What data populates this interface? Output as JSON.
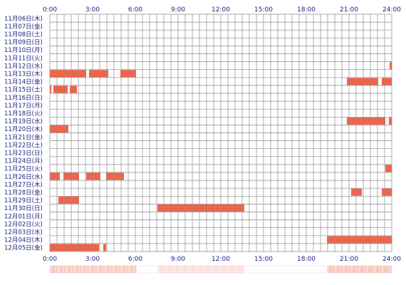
{
  "chart_data": {
    "type": "heatmap",
    "colors": {
      "background": "#ffffff",
      "grid": "#8c8c8c",
      "activity": "#f0644a",
      "label": "#1a237e"
    },
    "hour_ticks": [
      {
        "hour": 0,
        "label": "0:00"
      },
      {
        "hour": 3,
        "label": "3:00"
      },
      {
        "hour": 6,
        "label": "6:00"
      },
      {
        "hour": 9,
        "label": "9:00"
      },
      {
        "hour": 12,
        "label": "12:00"
      },
      {
        "hour": 15,
        "label": "15:00"
      },
      {
        "hour": 18,
        "label": "18:00"
      },
      {
        "hour": 21,
        "label": "21:00"
      },
      {
        "hour": 24,
        "label": "24:00"
      }
    ],
    "rows": [
      {
        "date": "11月06日(木)",
        "segments": []
      },
      {
        "date": "11月07日(金)",
        "segments": []
      },
      {
        "date": "11月08日(土)",
        "segments": []
      },
      {
        "date": "11月09日(日)",
        "segments": []
      },
      {
        "date": "11月10日(月)",
        "segments": []
      },
      {
        "date": "11月11日(火)",
        "segments": []
      },
      {
        "date": "11月12日(水)",
        "segments": [
          [
            23.85,
            24.0
          ]
        ]
      },
      {
        "date": "11月13日(木)",
        "segments": [
          [
            0.0,
            2.55
          ],
          [
            2.75,
            3.05
          ],
          [
            3.05,
            4.1
          ],
          [
            4.95,
            6.05
          ]
        ]
      },
      {
        "date": "11月14日(金)",
        "segments": [
          [
            20.85,
            23.05
          ],
          [
            23.3,
            24.0
          ]
        ]
      },
      {
        "date": "11月15日(土)",
        "segments": [
          [
            0.0,
            0.1
          ],
          [
            0.25,
            1.25
          ],
          [
            1.4,
            1.9
          ]
        ]
      },
      {
        "date": "11月16日(日)",
        "segments": []
      },
      {
        "date": "11月17日(月)",
        "segments": []
      },
      {
        "date": "11月18日(火)",
        "segments": []
      },
      {
        "date": "11月19日(水)",
        "segments": [
          [
            20.85,
            23.55
          ],
          [
            23.8,
            24.0
          ]
        ]
      },
      {
        "date": "11月20日(木)",
        "segments": [
          [
            0.0,
            1.3
          ]
        ]
      },
      {
        "date": "11月21日(金)",
        "segments": []
      },
      {
        "date": "11月22日(土)",
        "segments": []
      },
      {
        "date": "11月23日(日)",
        "segments": []
      },
      {
        "date": "11月24日(月)",
        "segments": []
      },
      {
        "date": "11月25日(火)",
        "segments": [
          [
            23.55,
            24.0
          ]
        ]
      },
      {
        "date": "11月26日(水)",
        "segments": [
          [
            0.0,
            0.7
          ],
          [
            0.95,
            2.05
          ],
          [
            2.55,
            3.55
          ],
          [
            3.95,
            5.2
          ]
        ]
      },
      {
        "date": "11月27日(木)",
        "segments": []
      },
      {
        "date": "11月28日(金)",
        "segments": [
          [
            21.15,
            21.9
          ],
          [
            23.3,
            24.0
          ]
        ]
      },
      {
        "date": "11月29日(土)",
        "segments": [
          [
            0.6,
            2.05
          ]
        ]
      },
      {
        "date": "11月30日(日)",
        "segments": [
          [
            7.55,
            13.65
          ]
        ]
      },
      {
        "date": "12月01日(月)",
        "segments": []
      },
      {
        "date": "12月02日(火)",
        "segments": []
      },
      {
        "date": "12月03日(水)",
        "segments": []
      },
      {
        "date": "12月04日(木)",
        "segments": [
          [
            19.45,
            24.0
          ]
        ]
      },
      {
        "date": "12月05日(金)",
        "segments": [
          [
            0.0,
            3.45
          ],
          [
            3.75,
            3.95
          ]
        ]
      }
    ],
    "summary_bar": {
      "colors": {
        "high": "#f0644a",
        "low": "#ffffff"
      },
      "segments": [
        {
          "start": 0.0,
          "end": 6.1,
          "intensity": 0.38
        },
        {
          "start": 7.55,
          "end": 13.65,
          "intensity": 0.22
        },
        {
          "start": 19.45,
          "end": 24.0,
          "intensity": 0.42
        }
      ]
    }
  }
}
